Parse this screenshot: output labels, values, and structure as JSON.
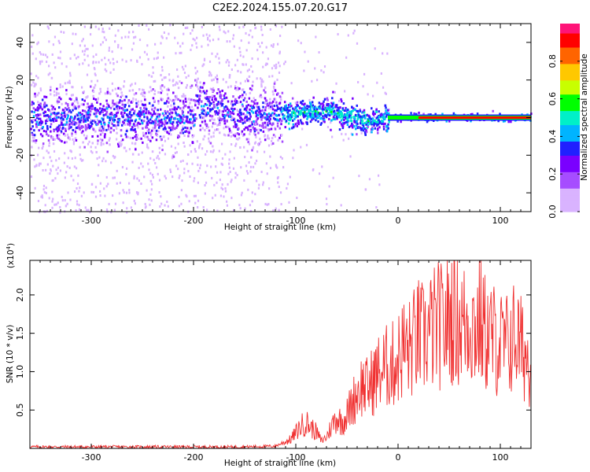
{
  "title": "C2E2.2024.155.07.20.G17",
  "colors": {
    "snr_line": "#f03030",
    "axis": "#000000"
  },
  "colormap": [
    "#ffffff",
    "#d9b3ff",
    "#a64dff",
    "#7a00ff",
    "#2020ff",
    "#00b4ff",
    "#00f0c8",
    "#00ff00",
    "#c8ff00",
    "#ffc800",
    "#ff6400",
    "#ff0000",
    "#ff1478"
  ],
  "chart_data": [
    {
      "type": "heatmap",
      "xlabel": "Height of straight line (km)",
      "ylabel": "Frequency (Hz)",
      "xlim": [
        -360,
        130
      ],
      "ylim": [
        -50,
        50
      ],
      "x_ticks": [
        -300,
        -200,
        -100,
        0,
        100
      ],
      "x_tick_labels": [
        "-300",
        "-200",
        "-100",
        "0",
        "100"
      ],
      "y_ticks": [
        -40,
        -20,
        0,
        20,
        40
      ],
      "y_tick_labels": [
        "-40",
        "-20",
        "0",
        "20",
        "40"
      ],
      "colorbar": {
        "label": "Normalized spectral amplitude",
        "range": [
          0.0,
          1.0
        ],
        "ticks": [
          0.0,
          0.2,
          0.4,
          0.6,
          0.8
        ],
        "tick_labels": [
          "0.0",
          "0.2",
          "0.4",
          "0.6",
          "0.8"
        ]
      },
      "features": [
        {
          "x_range": [
            -360,
            -115
          ],
          "spread_hz": 50,
          "level": 0.15,
          "note": "diffuse noise"
        },
        {
          "x_range": [
            -360,
            -115
          ],
          "spread_hz": 8,
          "level": 0.35,
          "note": "core"
        },
        {
          "x_range": [
            -115,
            -10
          ],
          "spread_hz": 6,
          "level": 0.45
        },
        {
          "x_range": [
            -10,
            130
          ],
          "spread_hz": 1,
          "level": 0.95
        }
      ]
    },
    {
      "type": "line",
      "xlabel": "Height of straight line (km)",
      "ylabel": "SNR (10 * v/v)",
      "scale_label": "(x10",
      "scale_exp": "4",
      "scale_close": ")",
      "xlim": [
        -360,
        130
      ],
      "ylim": [
        0,
        2.45
      ],
      "x_ticks": [
        -300,
        -200,
        -100,
        0,
        100
      ],
      "x_tick_labels": [
        "-300",
        "-200",
        "-100",
        "0",
        "100"
      ],
      "y_ticks": [
        0.5,
        1.0,
        1.5,
        2.0
      ],
      "y_tick_labels": [
        "0.5",
        "1.0",
        "1.5",
        "2.0"
      ],
      "series": [
        {
          "x": [
            -360,
            -300,
            -250,
            -200,
            -150,
            -120,
            -105,
            -95,
            -90,
            -85,
            -80,
            -75,
            -70,
            -65,
            -60,
            -55,
            -50,
            -45,
            -40,
            -35,
            -30,
            -25,
            -20,
            -15,
            -10,
            -5,
            0,
            5,
            10,
            15,
            20,
            25,
            30,
            35,
            40,
            45,
            50,
            55,
            60,
            65,
            70,
            75,
            80,
            85,
            90,
            95,
            100,
            105,
            110,
            115,
            120,
            125,
            130
          ],
          "values": [
            0.02,
            0.02,
            0.02,
            0.02,
            0.02,
            0.03,
            0.12,
            0.3,
            0.35,
            0.28,
            0.22,
            0.1,
            0.15,
            0.3,
            0.42,
            0.35,
            0.45,
            0.6,
            0.75,
            0.85,
            0.8,
            0.9,
            1.0,
            1.05,
            1.1,
            1.12,
            1.2,
            1.35,
            1.3,
            1.4,
            1.5,
            1.45,
            1.55,
            1.6,
            1.65,
            1.6,
            1.75,
            1.8,
            1.7,
            1.65,
            1.75,
            1.6,
            1.7,
            1.55,
            1.5,
            1.45,
            1.4,
            1.35,
            1.45,
            1.5,
            1.35,
            1.25,
            1.15
          ]
        }
      ]
    }
  ]
}
